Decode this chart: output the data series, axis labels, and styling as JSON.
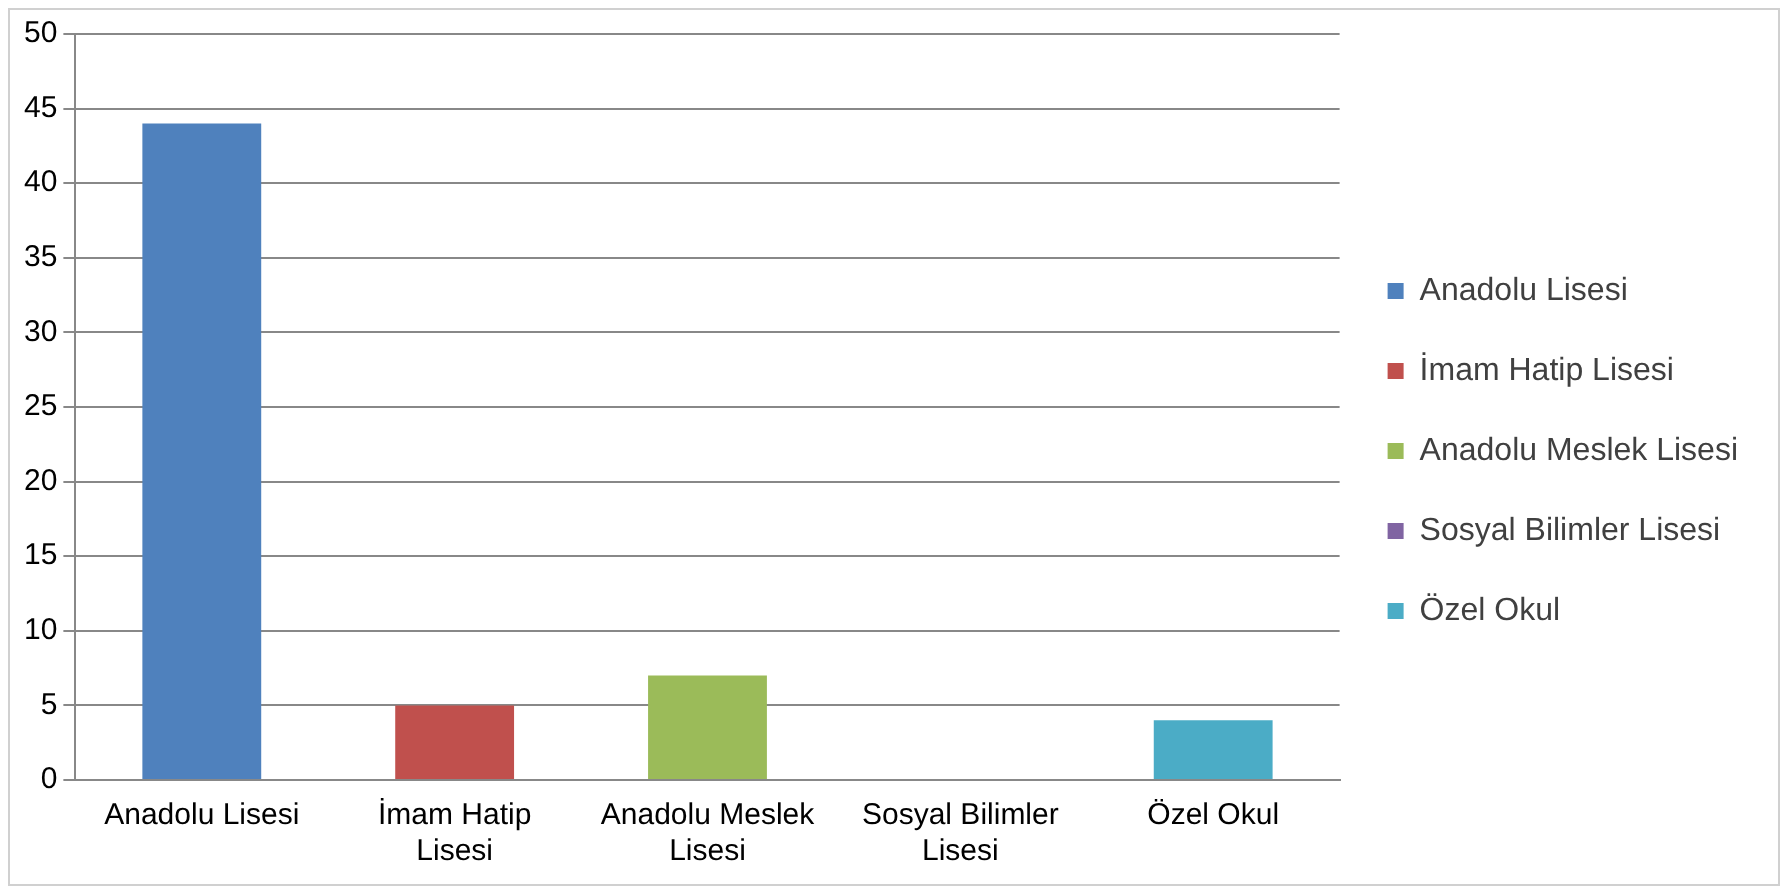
{
  "chart_data": {
    "type": "bar",
    "categories": [
      "Anadolu Lisesi",
      "İmam Hatip Lisesi",
      "Anadolu Meslek Lisesi",
      "Sosyal Bilimler Lisesi",
      "Özel Okul"
    ],
    "series": [
      {
        "name": "Anadolu Lisesi",
        "color": "#4f81bd",
        "values": [
          44,
          null,
          null,
          null,
          null
        ]
      },
      {
        "name": "İmam Hatip Lisesi",
        "color": "#c0504d",
        "values": [
          null,
          5,
          null,
          null,
          null
        ]
      },
      {
        "name": "Anadolu Meslek Lisesi",
        "color": "#9bbb59",
        "values": [
          null,
          null,
          7,
          null,
          null
        ]
      },
      {
        "name": "Sosyal Bilimler Lisesi",
        "color": "#8064a2",
        "values": [
          null,
          null,
          null,
          0,
          null
        ]
      },
      {
        "name": "Özel Okul",
        "color": "#4bacc6",
        "values": [
          null,
          null,
          null,
          null,
          4
        ]
      }
    ],
    "ylim": [
      0,
      50
    ],
    "yticks": [
      0,
      5,
      10,
      15,
      20,
      25,
      30,
      35,
      40,
      45,
      50
    ],
    "grid": "y",
    "legend": "right"
  }
}
